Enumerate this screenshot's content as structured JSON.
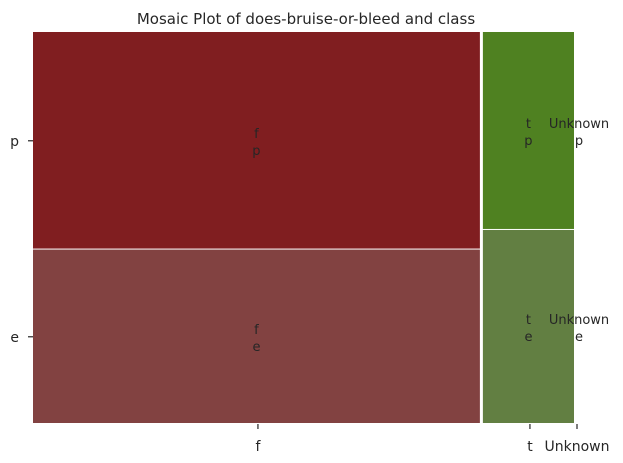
{
  "chart_data": {
    "type": "mosaic",
    "title": "Mosaic Plot of does-bruise-or-bleed and class",
    "x_categories": [
      "f",
      "t",
      "Unknown"
    ],
    "y_categories": [
      "p",
      "e"
    ],
    "column_shares": [
      0.827,
      0.173,
      0.0
    ],
    "cells": [
      {
        "x": "f",
        "y": "p",
        "share_in_column": 0.555,
        "label": [
          "f",
          "p"
        ],
        "color": "#801e20"
      },
      {
        "x": "f",
        "y": "e",
        "share_in_column": 0.445,
        "label": [
          "f",
          "e"
        ],
        "color": "#824241"
      },
      {
        "x": "t",
        "y": "p",
        "share_in_column": 0.505,
        "label": [
          "t",
          "p"
        ],
        "color": "#4f8121"
      },
      {
        "x": "t",
        "y": "e",
        "share_in_column": 0.495,
        "label": [
          "t",
          "e"
        ],
        "color": "#627f42"
      },
      {
        "x": "Unknown",
        "y": "p",
        "share_in_column": 0.505,
        "label": [
          "Unknown",
          "p"
        ],
        "color": "#4f8121"
      },
      {
        "x": "Unknown",
        "y": "e",
        "share_in_column": 0.495,
        "label": [
          "Unknown",
          "e"
        ],
        "color": "#627f42"
      }
    ]
  }
}
